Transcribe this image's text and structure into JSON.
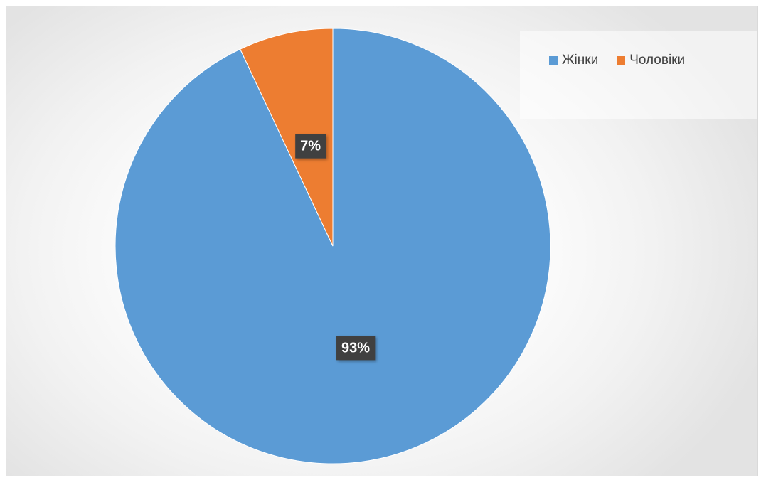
{
  "chart_data": {
    "type": "pie",
    "title": "",
    "categories": [
      "Жінки",
      "Чоловіки"
    ],
    "values": [
      93,
      7
    ],
    "value_labels": [
      "93%",
      "7%"
    ],
    "colors": [
      "#5b9bd5",
      "#ed7d31"
    ],
    "legend": {
      "position": "top-right",
      "items": [
        {
          "label": "Жінки",
          "color": "#5b9bd5"
        },
        {
          "label": "Чоловіки",
          "color": "#ed7d31"
        }
      ]
    }
  }
}
